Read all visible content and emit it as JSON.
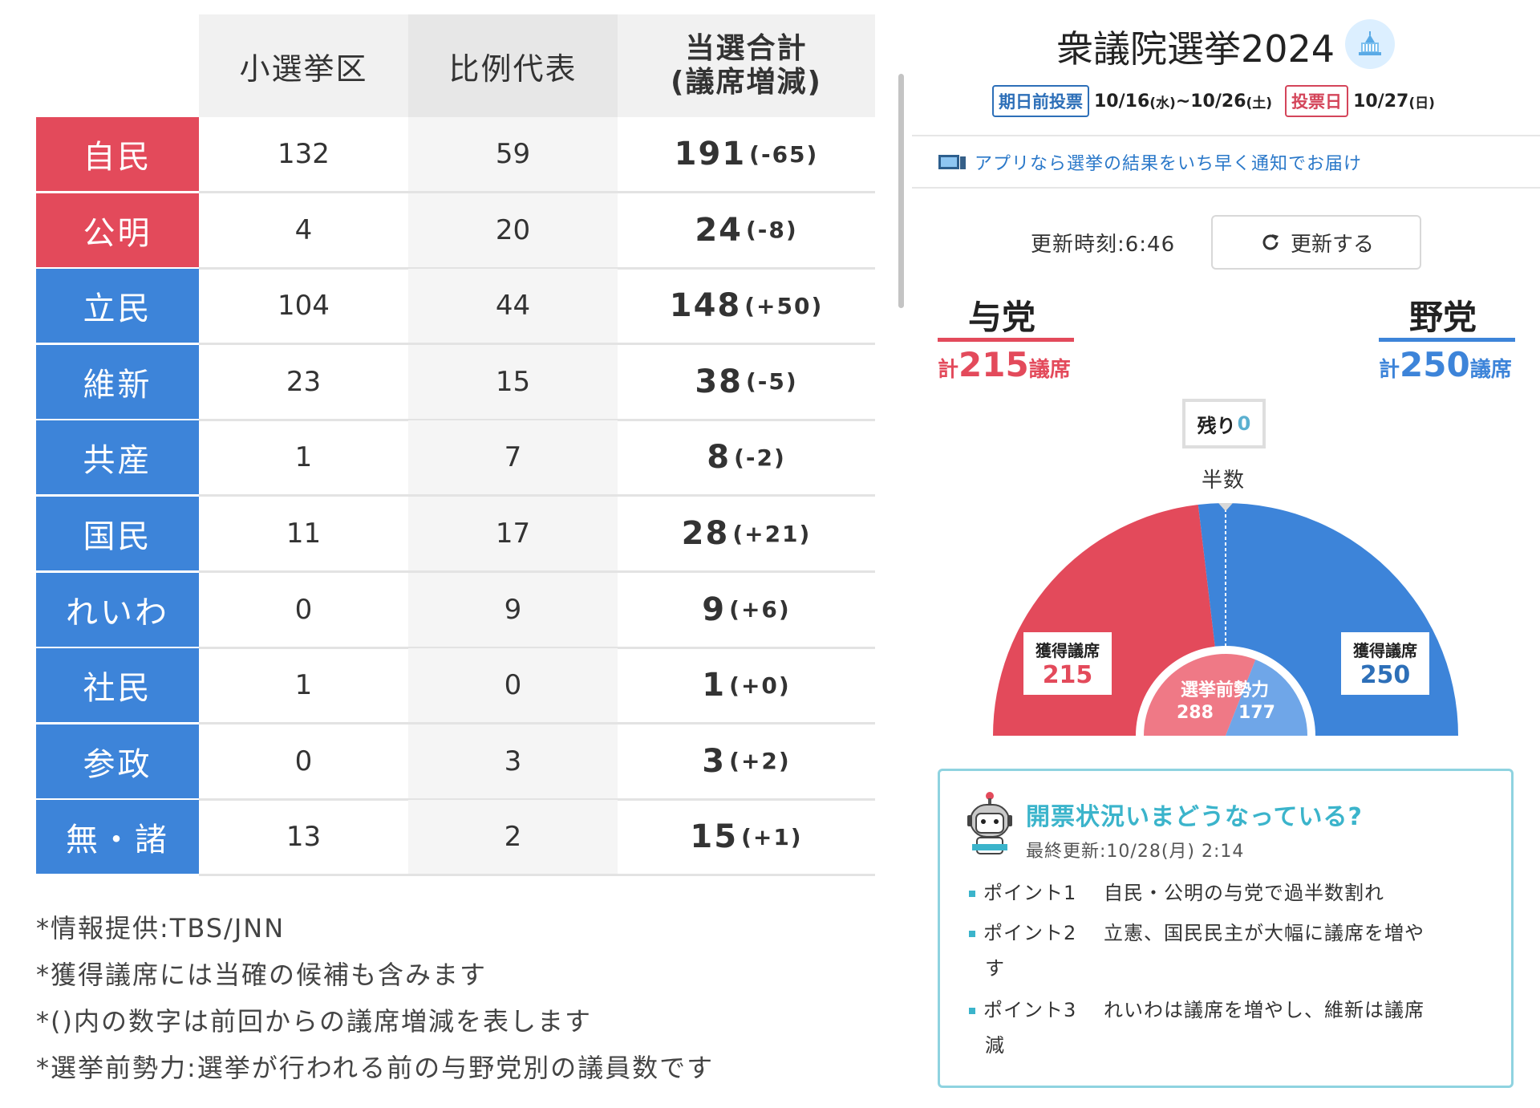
{
  "table": {
    "headers": {
      "single_seat": "小選挙区",
      "proportional": "比例代表",
      "total_line1": "当選合計",
      "total_line2": "(議席増減)"
    },
    "rows": [
      {
        "party": "自民",
        "single": "132",
        "prop": "59",
        "total": "191",
        "diff": "(-65)",
        "color": "#e34a5b"
      },
      {
        "party": "公明",
        "single": "4",
        "prop": "20",
        "total": "24",
        "diff": "(-8)",
        "color": "#e34a5b"
      },
      {
        "party": "立民",
        "single": "104",
        "prop": "44",
        "total": "148",
        "diff": "(+50)",
        "color": "#3d84d9"
      },
      {
        "party": "維新",
        "single": "23",
        "prop": "15",
        "total": "38",
        "diff": "(-5)",
        "color": "#3d84d9"
      },
      {
        "party": "共産",
        "single": "1",
        "prop": "7",
        "total": "8",
        "diff": "(-2)",
        "color": "#3d84d9"
      },
      {
        "party": "国民",
        "single": "11",
        "prop": "17",
        "total": "28",
        "diff": "(+21)",
        "color": "#3d84d9"
      },
      {
        "party": "れいわ",
        "single": "0",
        "prop": "9",
        "total": "9",
        "diff": "(+6)",
        "color": "#3d84d9"
      },
      {
        "party": "社民",
        "single": "1",
        "prop": "0",
        "total": "1",
        "diff": "(+0)",
        "color": "#3d84d9"
      },
      {
        "party": "参政",
        "single": "0",
        "prop": "3",
        "total": "3",
        "diff": "(+2)",
        "color": "#3d84d9"
      },
      {
        "party": "無・諸",
        "single": "13",
        "prop": "2",
        "total": "15",
        "diff": "(+1)",
        "color": "#3d84d9"
      }
    ]
  },
  "notes": [
    "*情報提供:TBS/JNN",
    "*獲得議席には当確の候補も含みます",
    "*()内の数字は前回からの議席増減を表します",
    "*選挙前勢力:選挙が行われる前の与野党別の議員数です"
  ],
  "panel": {
    "title": "衆議院選挙2024",
    "early_vote_label": "期日前投票",
    "early_vote_start": "10/16",
    "early_vote_start_day": "(水)",
    "early_vote_sep": "~",
    "early_vote_end": "10/26",
    "early_vote_end_day": "(土)",
    "vote_day_label": "投票日",
    "vote_day": "10/27",
    "vote_day_day": "(日)",
    "app_link": "アプリなら選挙の結果をいち早く通知でお届け",
    "update_time": "更新時刻:6:46",
    "update_button": "更新する",
    "ruling": {
      "label": "与党",
      "kei": "計",
      "seats": "215",
      "unit": "議席"
    },
    "opposition": {
      "label": "野党",
      "kei": "計",
      "seats": "250",
      "unit": "議席"
    },
    "remaining_label": "残り",
    "remaining_value": "0",
    "half_label": "半数",
    "won_label": "獲得議席",
    "pre_label": "選挙前勢力",
    "pre_ruling": "288",
    "pre_opposition": "177",
    "colors": {
      "ruling": "#e34a5b",
      "opposition": "#3d84d9",
      "accent": "#3bb4cb"
    }
  },
  "chart_data": {
    "type": "pie",
    "title": "",
    "semicircle": true,
    "outer": {
      "categories": [
        "与党",
        "野党"
      ],
      "values": [
        215,
        250
      ]
    },
    "inner": {
      "label": "選挙前勢力",
      "categories": [
        "与党",
        "野党"
      ],
      "values": [
        288,
        177
      ]
    },
    "half_marker": true
  },
  "card": {
    "title": "開票状況いまどうなっている?",
    "updated": "最終更新:10/28(月) 2:14",
    "points": [
      {
        "key": "ポイント1",
        "text": "自民・公明の与党で過半数割れ",
        "cont": ""
      },
      {
        "key": "ポイント2",
        "text": "立憲、国民民主が大幅に議席を増や",
        "cont": "す"
      },
      {
        "key": "ポイント3",
        "text": "れいわは議席を増やし、維新は議席",
        "cont": "減"
      }
    ]
  }
}
